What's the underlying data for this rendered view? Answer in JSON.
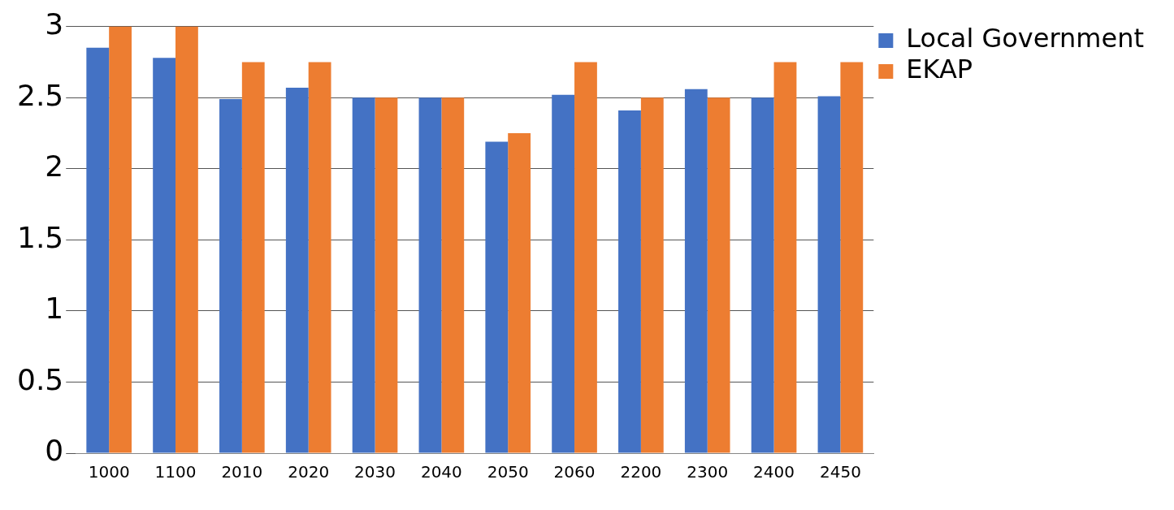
{
  "chart_data": {
    "type": "bar",
    "categories": [
      "1000",
      "1100",
      "2010",
      "2020",
      "2030",
      "2040",
      "2050",
      "2060",
      "2200",
      "2300",
      "2400",
      "2450"
    ],
    "series": [
      {
        "name": "Local Government",
        "color": "#4472c4",
        "values": [
          2.85,
          2.78,
          2.49,
          2.57,
          2.5,
          2.5,
          2.19,
          2.52,
          2.41,
          2.56,
          2.5,
          2.51
        ]
      },
      {
        "name": "EKAP",
        "color": "#ed7d31",
        "values": [
          3,
          3,
          2.75,
          2.75,
          2.5,
          2.5,
          2.25,
          2.75,
          2.5,
          2.5,
          2.75,
          2.75
        ]
      }
    ],
    "ylim": [
      0,
      3
    ],
    "yticks": [
      0,
      0.5,
      1,
      1.5,
      2,
      2.5,
      3
    ],
    "grid": "y",
    "legend": "top right"
  }
}
